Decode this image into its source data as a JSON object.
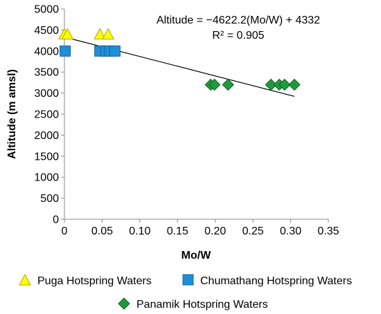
{
  "chart_data": {
    "type": "scatter",
    "title": "",
    "xlabel": "Mo/W",
    "ylabel": "Altitude (m amsl)",
    "xlim": [
      0,
      0.35
    ],
    "ylim": [
      0,
      5000
    ],
    "x_ticks": [
      "0",
      "0.05",
      "0.10",
      "0.15",
      "0.20",
      "0.25",
      "0.30",
      "0.35"
    ],
    "y_ticks": [
      "0",
      "500",
      "1000",
      "1500",
      "2000",
      "2500",
      "3000",
      "3500",
      "4000",
      "4500",
      "5000"
    ],
    "grid": false,
    "legend_position": "bottom",
    "series": [
      {
        "name": "Puga Hotspring Waters",
        "marker": "triangle",
        "color": "#FFFF00",
        "points": [
          [
            0.0,
            4400
          ],
          [
            0.004,
            4400
          ],
          [
            0.047,
            4400
          ],
          [
            0.058,
            4400
          ]
        ]
      },
      {
        "name": "Chumathang Hotspring Waters",
        "marker": "square",
        "color": "#1E8FD6",
        "points": [
          [
            0.001,
            4000
          ],
          [
            0.047,
            4000
          ],
          [
            0.055,
            4000
          ],
          [
            0.06,
            4000
          ],
          [
            0.067,
            4000
          ]
        ]
      },
      {
        "name": "Panamik Hotspring Waters",
        "marker": "diamond",
        "color": "#1E9A3C",
        "points": [
          [
            0.194,
            3200
          ],
          [
            0.199,
            3200
          ],
          [
            0.217,
            3200
          ],
          [
            0.274,
            3200
          ],
          [
            0.285,
            3200
          ],
          [
            0.292,
            3200
          ],
          [
            0.305,
            3200
          ]
        ]
      }
    ],
    "trendline": {
      "slope": -4622.2,
      "intercept": 4332,
      "x_range": [
        0,
        0.305
      ],
      "equation_label": "Altitude = −4622.2(Mo/W) + 4332",
      "r2_label": "R² = 0.905"
    }
  }
}
